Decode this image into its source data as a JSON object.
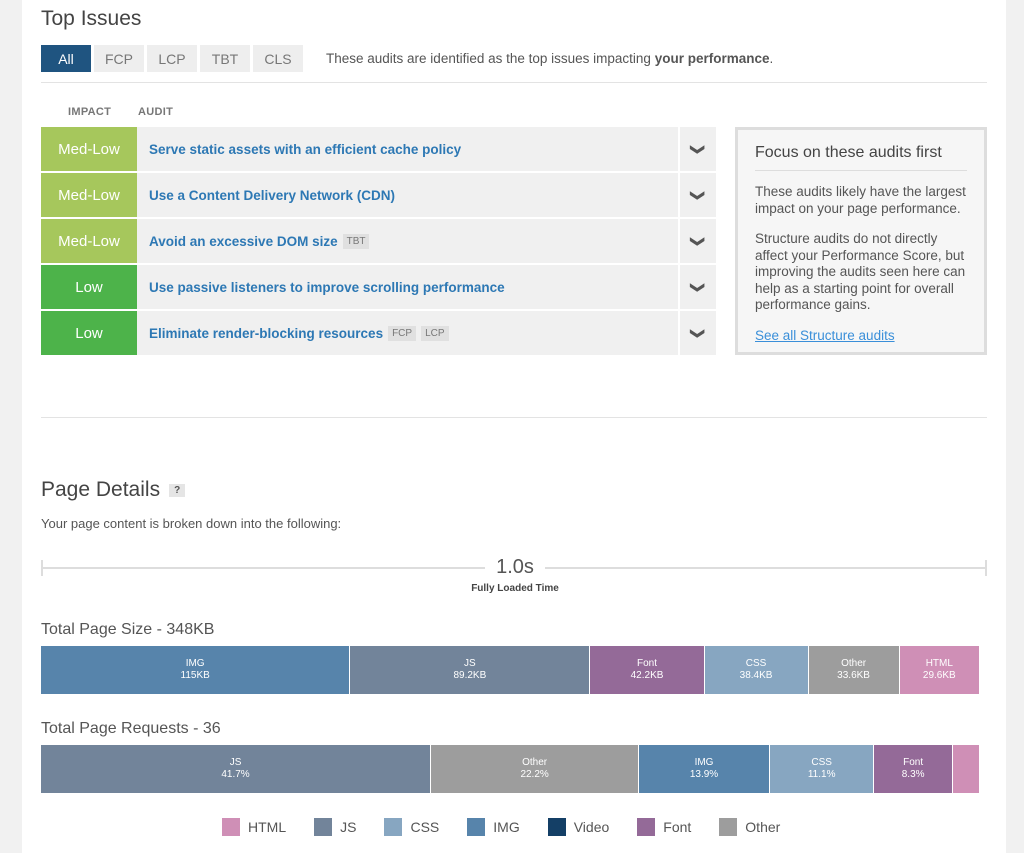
{
  "top_issues": {
    "title": "Top Issues",
    "tabs": [
      "All",
      "FCP",
      "LCP",
      "TBT",
      "CLS"
    ],
    "description_prefix": "These audits are identified as the top issues impacting ",
    "description_bold": "your performance",
    "description_suffix": ".",
    "col_impact": "IMPACT",
    "col_audit": "AUDIT",
    "rows": [
      {
        "impact": "Med-Low",
        "color": "#a6c75c",
        "audit": "Serve static assets with an efficient cache policy",
        "tags": []
      },
      {
        "impact": "Med-Low",
        "color": "#a6c75c",
        "audit": "Use a Content Delivery Network (CDN)",
        "tags": []
      },
      {
        "impact": "Med-Low",
        "color": "#a6c75c",
        "audit": "Avoid an excessive DOM size",
        "tags": [
          "TBT"
        ]
      },
      {
        "impact": "Low",
        "color": "#4db34a",
        "audit": "Use passive listeners to improve scrolling performance",
        "tags": []
      },
      {
        "impact": "Low",
        "color": "#4db34a",
        "audit": "Eliminate render-blocking resources",
        "tags": [
          "FCP",
          "LCP"
        ]
      }
    ],
    "focus": {
      "title": "Focus on these audits first",
      "p1": "These audits likely have the largest impact on your page performance.",
      "p2": "Structure audits do not directly affect your Performance Score, but improving the audits seen here can help as a starting point for overall performance gains.",
      "link": "See all Structure audits"
    }
  },
  "page_details": {
    "title": "Page Details",
    "help": "?",
    "subtitle": "Your page content is broken down into the following:",
    "time": "1.0s",
    "time_label": "Fully Loaded Time",
    "size_title": "Total Page Size - 348KB",
    "requests_title": "Total Page Requests - 36"
  },
  "chart_data": [
    {
      "type": "bar",
      "title": "Total Page Size - 348KB",
      "unit": "KB",
      "categories": [
        "IMG",
        "JS",
        "Font",
        "CSS",
        "Other",
        "HTML"
      ],
      "values": [
        115,
        89.2,
        42.2,
        38.4,
        33.6,
        29.6
      ],
      "labels": [
        "115KB",
        "89.2KB",
        "42.2KB",
        "38.4KB",
        "33.6KB",
        "29.6KB"
      ]
    },
    {
      "type": "bar",
      "title": "Total Page Requests - 36",
      "unit": "%",
      "categories": [
        "JS",
        "Other",
        "IMG",
        "CSS",
        "Font",
        "HTML"
      ],
      "values": [
        41.7,
        22.2,
        13.9,
        11.1,
        8.3,
        2.8
      ],
      "labels": [
        "41.7%",
        "22.2%",
        "13.9%",
        "11.1%",
        "8.3%",
        ""
      ]
    }
  ],
  "colors": {
    "HTML": "#cf8fb6",
    "JS": "#72849a",
    "CSS": "#87a6c1",
    "IMG": "#5784ab",
    "Video": "#143f66",
    "Font": "#946a98",
    "Other": "#9d9d9d"
  },
  "legend": [
    "HTML",
    "JS",
    "CSS",
    "IMG",
    "Video",
    "Font",
    "Other"
  ]
}
